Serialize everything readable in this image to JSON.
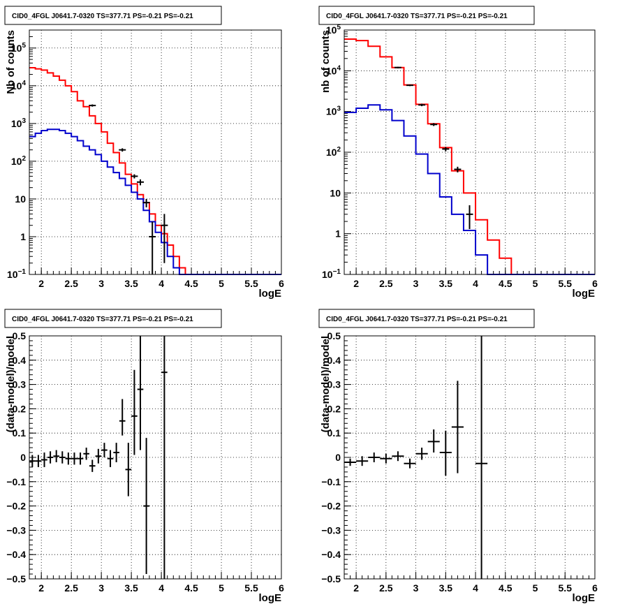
{
  "colors": {
    "model_total": "#ff0000",
    "model_source": "#0000cc",
    "data": "#000000"
  },
  "chart_data": [
    {
      "type": "line",
      "title": "CID0_4FGL J0641.7-0320 TS=377.71 PS=-0.21 PS=-0.21",
      "xlabel": "logE",
      "ylabel": "Nb of counts",
      "xlim": [
        1.8,
        6.0
      ],
      "ylim": [
        0.1,
        300000
      ],
      "yscale": "log",
      "xticks": [
        "2",
        "2.5",
        "3",
        "3.5",
        "4",
        "4.5",
        "5",
        "5.5",
        "6"
      ],
      "yticks": [
        "10^-1",
        "1",
        "10",
        "10^2",
        "10^3",
        "10^4",
        "10^5"
      ],
      "grid": true,
      "bin_edges": [
        1.8,
        1.9,
        2.0,
        2.1,
        2.2,
        2.3,
        2.4,
        2.5,
        2.6,
        2.7,
        2.8,
        2.9,
        3.0,
        3.1,
        3.2,
        3.3,
        3.4,
        3.5,
        3.6,
        3.7,
        3.8,
        3.9,
        4.0,
        4.1,
        4.2,
        4.3,
        4.4,
        4.5,
        4.6,
        4.7,
        4.8,
        4.9,
        5.0,
        5.1,
        5.2,
        5.3,
        5.4,
        5.5,
        5.6,
        5.7,
        5.8,
        5.9,
        6.0
      ],
      "series": [
        {
          "role": "model_total",
          "values": [
            30000,
            28000,
            26000,
            22000,
            18000,
            14000,
            10000,
            7000,
            4000,
            2800,
            1600,
            1000,
            600,
            300,
            170,
            90,
            45,
            25,
            13,
            8,
            4,
            2,
            1.2,
            0.6,
            0.3,
            0.15,
            0.1,
            0.1,
            0.1,
            0.1,
            0.1,
            0.1,
            0.1,
            0.1,
            0.1,
            0.1,
            0.1,
            0.1,
            0.1,
            0.1,
            0.1,
            0.1
          ]
        },
        {
          "role": "model_source",
          "values": [
            450,
            550,
            650,
            700,
            700,
            650,
            550,
            450,
            350,
            250,
            200,
            150,
            100,
            70,
            50,
            35,
            23,
            15,
            10,
            5,
            2.5,
            1.3,
            0.7,
            0.3,
            0.15,
            0.1,
            0.1,
            0.1,
            0.1,
            0.1,
            0.1,
            0.1,
            0.1,
            0.1,
            0.1,
            0.1,
            0.1,
            0.1,
            0.1,
            0.1,
            0.1,
            0.1
          ]
        },
        {
          "role": "data",
          "points": [
            {
              "x": 2.85,
              "y": 3000,
              "ylo": 2800,
              "yhi": 3200
            },
            {
              "x": 3.35,
              "y": 200,
              "ylo": 180,
              "yhi": 220
            },
            {
              "x": 3.55,
              "y": 40,
              "ylo": 35,
              "yhi": 45
            },
            {
              "x": 3.65,
              "y": 28,
              "ylo": 23,
              "yhi": 33
            },
            {
              "x": 3.75,
              "y": 8,
              "ylo": 6,
              "yhi": 10
            },
            {
              "x": 3.85,
              "y": 1,
              "ylo": 0.1,
              "yhi": 2.5
            },
            {
              "x": 4.05,
              "y": 2,
              "ylo": 0.2,
              "yhi": 4
            }
          ]
        }
      ]
    },
    {
      "type": "line",
      "title": "CID0_4FGL J0641.7-0320 TS=377.71 PS=-0.21 PS=-0.21",
      "xlabel": "logE",
      "ylabel": "nb of counts",
      "xlim": [
        1.8,
        6.0
      ],
      "ylim": [
        0.1,
        100000
      ],
      "yscale": "log",
      "xticks": [
        "2",
        "2.5",
        "3",
        "3.5",
        "4",
        "4.5",
        "5",
        "5.5",
        "6"
      ],
      "yticks": [
        "10^-1",
        "1",
        "10",
        "10^2",
        "10^3",
        "10^4",
        "10^5"
      ],
      "grid": true,
      "bin_edges": [
        1.8,
        2.0,
        2.2,
        2.4,
        2.6,
        2.8,
        3.0,
        3.2,
        3.4,
        3.6,
        3.8,
        4.0,
        4.2,
        4.4,
        4.6,
        4.8,
        5.0,
        5.2,
        5.4,
        5.6,
        5.8,
        6.0
      ],
      "series": [
        {
          "role": "model_total",
          "values": [
            60000,
            55000,
            40000,
            22000,
            12000,
            4500,
            1500,
            500,
            130,
            35,
            10,
            2.2,
            0.7,
            0.25,
            0.1,
            0.1,
            0.1,
            0.1,
            0.1,
            0.1,
            0.1
          ]
        },
        {
          "role": "model_source",
          "values": [
            950,
            1200,
            1450,
            1100,
            600,
            250,
            90,
            30,
            8,
            3,
            1.2,
            0.3,
            0.1,
            0.1,
            0.1,
            0.1,
            0.1,
            0.1,
            0.1,
            0.1,
            0.1
          ]
        },
        {
          "role": "data",
          "points": [
            {
              "x": 2.7,
              "y": 12000,
              "ylo": 11500,
              "yhi": 12500
            },
            {
              "x": 2.9,
              "y": 4400,
              "ylo": 4200,
              "yhi": 4600
            },
            {
              "x": 3.1,
              "y": 1450,
              "ylo": 1350,
              "yhi": 1550
            },
            {
              "x": 3.3,
              "y": 480,
              "ylo": 440,
              "yhi": 520
            },
            {
              "x": 3.5,
              "y": 120,
              "ylo": 105,
              "yhi": 135
            },
            {
              "x": 3.7,
              "y": 38,
              "ylo": 32,
              "yhi": 44
            },
            {
              "x": 3.9,
              "y": 3,
              "ylo": 1.3,
              "yhi": 5
            }
          ]
        }
      ]
    },
    {
      "type": "scatter",
      "title": "CID0_4FGL J0641.7-0320 TS=377.71 PS=-0.21 PS=-0.21",
      "xlabel": "logE",
      "ylabel": "(data-model)/model",
      "xlim": [
        1.8,
        6.0
      ],
      "ylim": [
        -0.5,
        0.5
      ],
      "xticks": [
        "2",
        "2.5",
        "3",
        "3.5",
        "4",
        "4.5",
        "5",
        "5.5",
        "6"
      ],
      "yticks": [
        "−0.5",
        "−0.4",
        "−0.3",
        "−0.2",
        "−0.1",
        "0",
        "0.1",
        "0.2",
        "0.3",
        "0.4",
        "0.5"
      ],
      "grid": true,
      "points": [
        {
          "x": 1.85,
          "y": -0.015,
          "ylo": -0.04,
          "yhi": 0.01,
          "hw": 0.05
        },
        {
          "x": 1.95,
          "y": -0.015,
          "ylo": -0.04,
          "yhi": 0.01,
          "hw": 0.05
        },
        {
          "x": 2.05,
          "y": -0.01,
          "ylo": -0.04,
          "yhi": 0.02,
          "hw": 0.05
        },
        {
          "x": 2.15,
          "y": 0.0,
          "ylo": -0.025,
          "yhi": 0.025,
          "hw": 0.05
        },
        {
          "x": 2.25,
          "y": 0.005,
          "ylo": -0.02,
          "yhi": 0.03,
          "hw": 0.05
        },
        {
          "x": 2.35,
          "y": 0.0,
          "ylo": -0.025,
          "yhi": 0.025,
          "hw": 0.05
        },
        {
          "x": 2.45,
          "y": -0.005,
          "ylo": -0.03,
          "yhi": 0.02,
          "hw": 0.05
        },
        {
          "x": 2.55,
          "y": -0.005,
          "ylo": -0.03,
          "yhi": 0.02,
          "hw": 0.05
        },
        {
          "x": 2.65,
          "y": -0.005,
          "ylo": -0.03,
          "yhi": 0.02,
          "hw": 0.05
        },
        {
          "x": 2.75,
          "y": 0.015,
          "ylo": -0.01,
          "yhi": 0.04,
          "hw": 0.05
        },
        {
          "x": 2.85,
          "y": -0.035,
          "ylo": -0.06,
          "yhi": -0.01,
          "hw": 0.05
        },
        {
          "x": 2.95,
          "y": 0.005,
          "ylo": -0.025,
          "yhi": 0.035,
          "hw": 0.05
        },
        {
          "x": 3.05,
          "y": 0.03,
          "ylo": 0.0,
          "yhi": 0.06,
          "hw": 0.05
        },
        {
          "x": 3.15,
          "y": -0.005,
          "ylo": -0.04,
          "yhi": 0.03,
          "hw": 0.05
        },
        {
          "x": 3.25,
          "y": 0.02,
          "ylo": -0.02,
          "yhi": 0.06,
          "hw": 0.05
        },
        {
          "x": 3.35,
          "y": 0.15,
          "ylo": 0.09,
          "yhi": 0.24,
          "hw": 0.05
        },
        {
          "x": 3.45,
          "y": -0.05,
          "ylo": -0.16,
          "yhi": 0.06,
          "hw": 0.05
        },
        {
          "x": 3.55,
          "y": 0.17,
          "ylo": 0.01,
          "yhi": 0.36,
          "hw": 0.05
        },
        {
          "x": 3.65,
          "y": 0.28,
          "ylo": 0.03,
          "yhi": 0.5,
          "hw": 0.05
        },
        {
          "x": 3.75,
          "y": -0.2,
          "ylo": -0.48,
          "yhi": 0.08,
          "hw": 0.05
        },
        {
          "x": 4.05,
          "y": 0.35,
          "ylo": -0.5,
          "yhi": 0.5,
          "hw": 0.05
        }
      ]
    },
    {
      "type": "scatter",
      "title": "CID0_4FGL J0641.7-0320 TS=377.71 PS=-0.21 PS=-0.21",
      "xlabel": "logE",
      "ylabel": "(data-model)/model",
      "xlim": [
        1.8,
        6.0
      ],
      "ylim": [
        -0.5,
        0.5
      ],
      "xticks": [
        "2",
        "2.5",
        "3",
        "3.5",
        "4",
        "4.5",
        "5",
        "5.5",
        "6"
      ],
      "yticks": [
        "−0.5",
        "−0.4",
        "−0.3",
        "−0.2",
        "−0.1",
        "0",
        "0.1",
        "0.2",
        "0.3",
        "0.4",
        "0.5"
      ],
      "grid": true,
      "points": [
        {
          "x": 1.9,
          "y": -0.02,
          "ylo": -0.035,
          "yhi": -0.005,
          "hw": 0.1
        },
        {
          "x": 2.1,
          "y": -0.015,
          "ylo": -0.035,
          "yhi": 0.005,
          "hw": 0.1
        },
        {
          "x": 2.3,
          "y": 0.0,
          "ylo": -0.02,
          "yhi": 0.02,
          "hw": 0.1
        },
        {
          "x": 2.5,
          "y": -0.005,
          "ylo": -0.025,
          "yhi": 0.015,
          "hw": 0.1
        },
        {
          "x": 2.7,
          "y": 0.005,
          "ylo": -0.015,
          "yhi": 0.025,
          "hw": 0.1
        },
        {
          "x": 2.9,
          "y": -0.025,
          "ylo": -0.045,
          "yhi": -0.005,
          "hw": 0.1
        },
        {
          "x": 3.1,
          "y": 0.015,
          "ylo": -0.01,
          "yhi": 0.04,
          "hw": 0.1
        },
        {
          "x": 3.3,
          "y": 0.065,
          "ylo": 0.02,
          "yhi": 0.115,
          "hw": 0.1
        },
        {
          "x": 3.5,
          "y": 0.02,
          "ylo": -0.075,
          "yhi": 0.11,
          "hw": 0.1
        },
        {
          "x": 3.7,
          "y": 0.125,
          "ylo": -0.065,
          "yhi": 0.315,
          "hw": 0.1
        },
        {
          "x": 4.1,
          "y": -0.025,
          "ylo": -0.5,
          "yhi": 0.5,
          "hw": 0.1
        }
      ]
    }
  ]
}
